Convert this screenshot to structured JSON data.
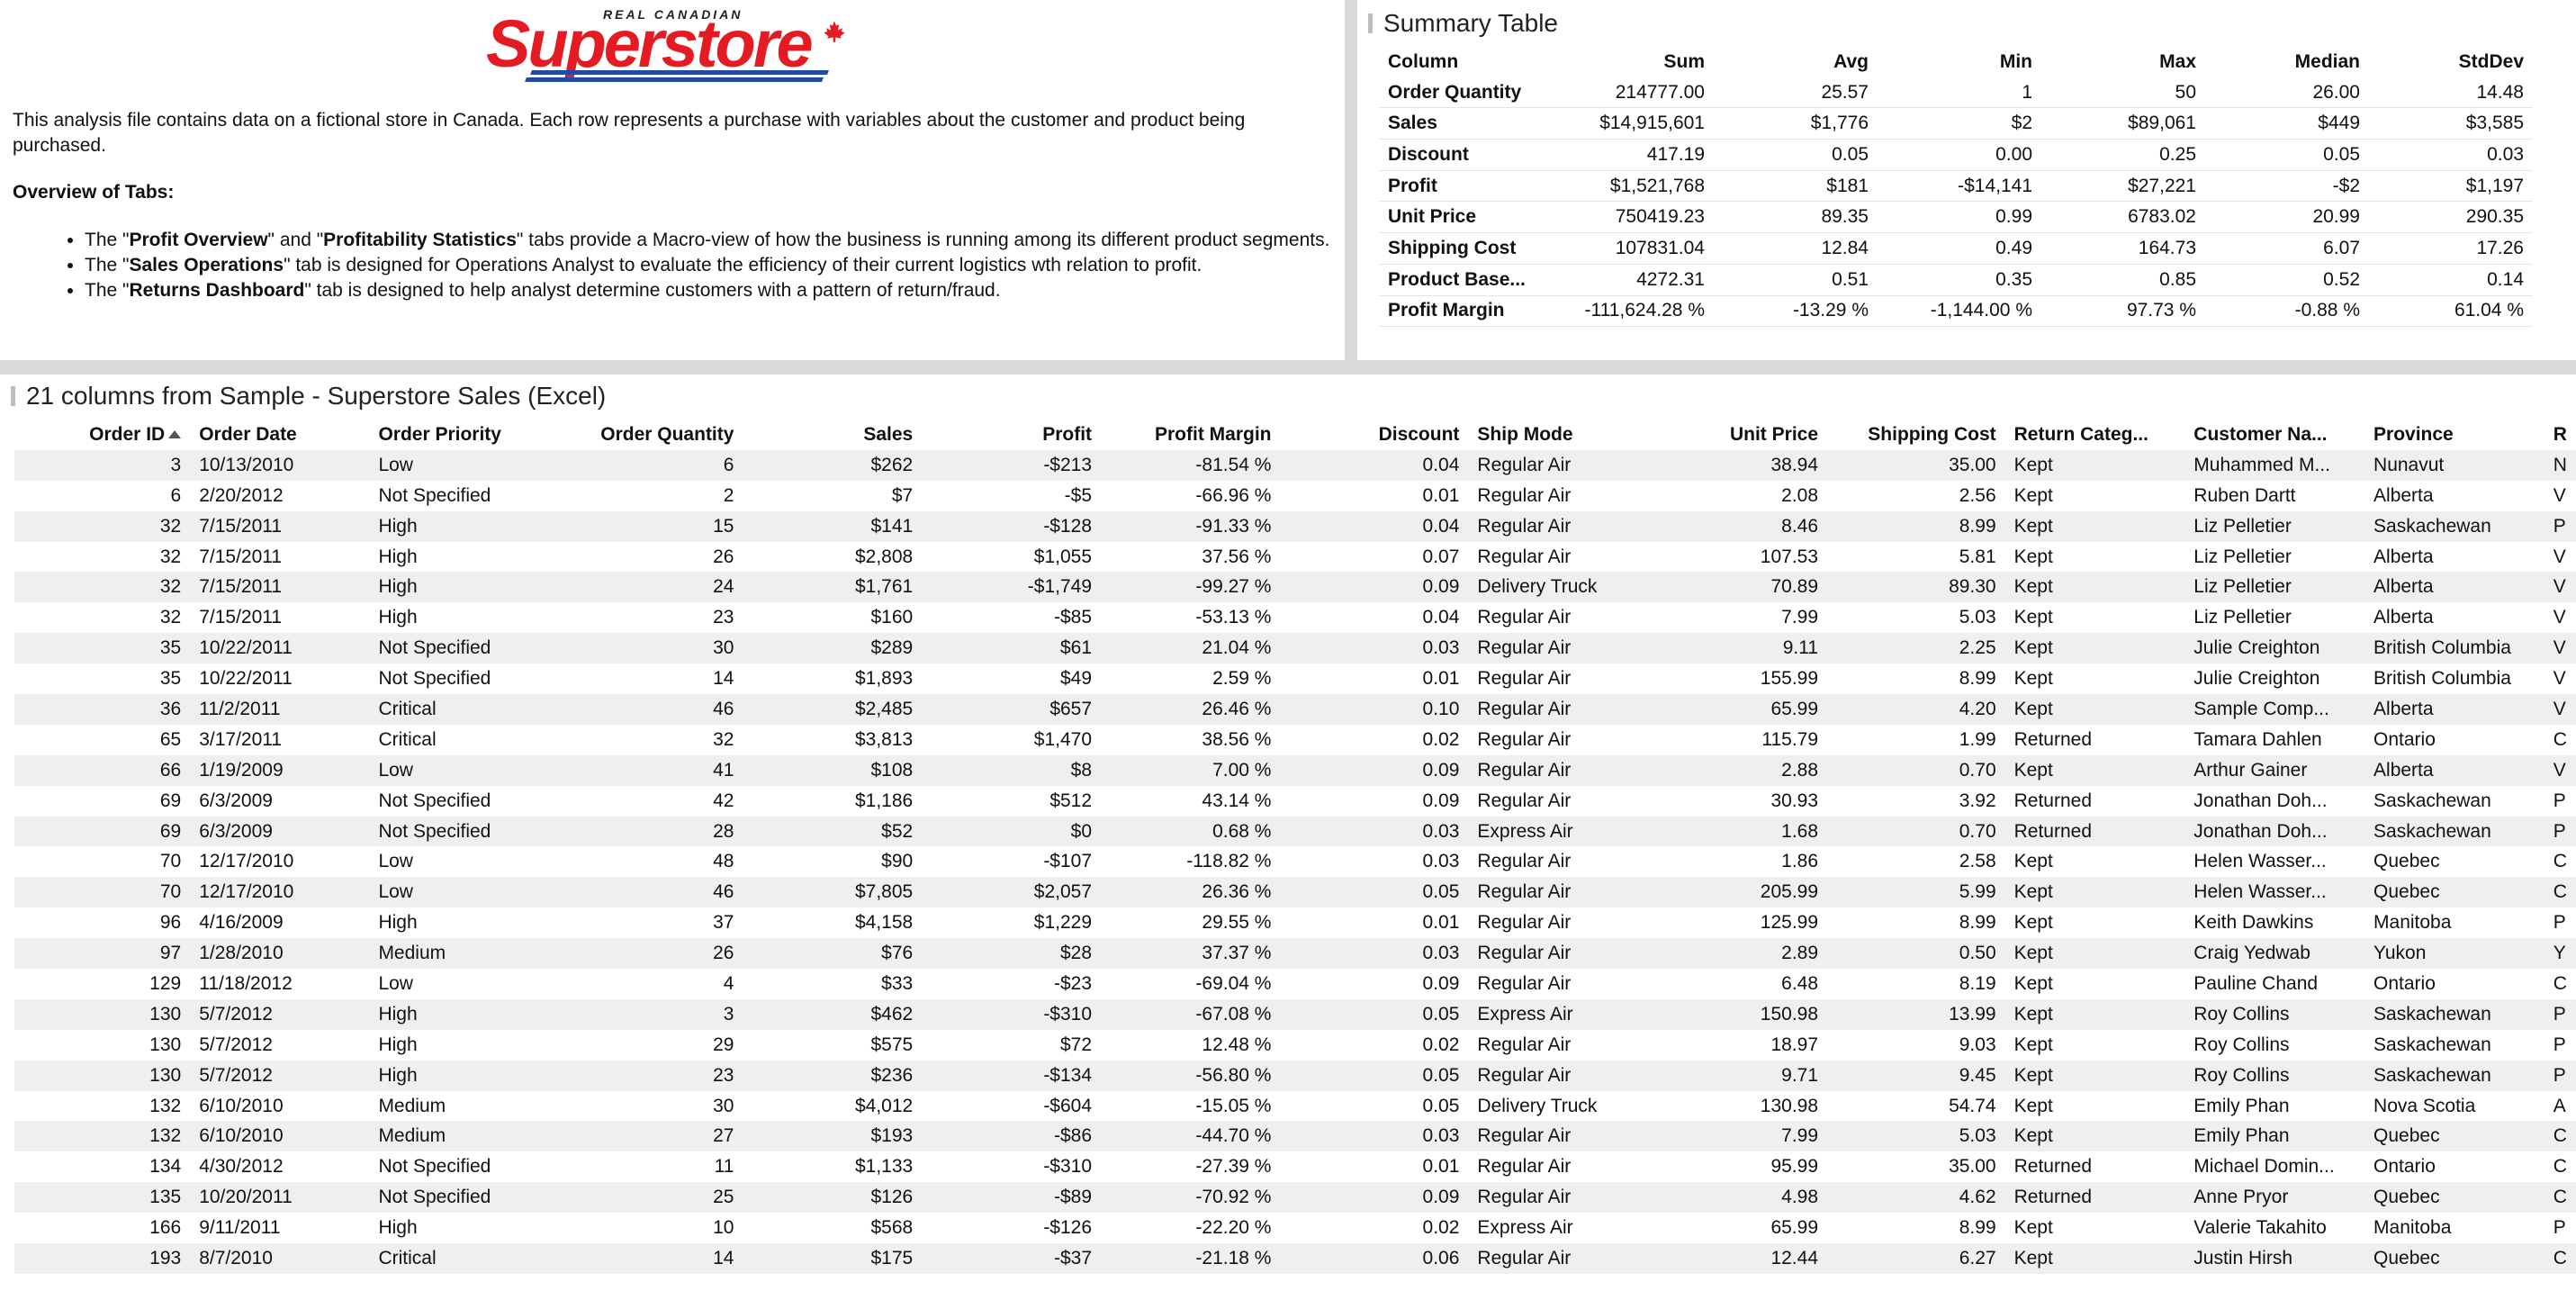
{
  "logo": {
    "tagline": "REAL CANADIAN",
    "wordmark": "Superstore",
    "icon": "maple-leaf-icon",
    "brand_red": "#e41b23",
    "brand_blue": "#1f4aa8"
  },
  "intro": {
    "description": "This analysis file contains data on a fictional store in Canada. Each row represents a purchase with variables about the customer and product being purchased.",
    "overview_title": "Overview of Tabs:",
    "bullets": [
      {
        "pre": "The \"",
        "b1": "Profit Overview",
        "mid": "\" and \"",
        "b2": "Profitability Statistics",
        "post": "\" tabs provide a Macro-view of how the business is running among its different product segments."
      },
      {
        "pre": "The \"",
        "b1": "Sales Operations",
        "post": "\" tab is designed for Operations Analyst to evaluate the efficiency of their current logistics wth relation to profit."
      },
      {
        "pre": "The \"",
        "b1": "Returns Dashboard",
        "post": "\" tab is designed to help analyst determine customers with a pattern of return/fraud."
      }
    ]
  },
  "summary": {
    "title": "Summary Table",
    "columns": [
      "Column",
      "Sum",
      "Avg",
      "Min",
      "Max",
      "Median",
      "StdDev"
    ],
    "rows": [
      [
        "Order Quantity",
        "214777.00",
        "25.57",
        "1",
        "50",
        "26.00",
        "14.48"
      ],
      [
        "Sales",
        "$14,915,601",
        "$1,776",
        "$2",
        "$89,061",
        "$449",
        "$3,585"
      ],
      [
        "Discount",
        "417.19",
        "0.05",
        "0.00",
        "0.25",
        "0.05",
        "0.03"
      ],
      [
        "Profit",
        "$1,521,768",
        "$181",
        "-$14,141",
        "$27,221",
        "-$2",
        "$1,197"
      ],
      [
        "Unit Price",
        "750419.23",
        "89.35",
        "0.99",
        "6783.02",
        "20.99",
        "290.35"
      ],
      [
        "Shipping Cost",
        "107831.04",
        "12.84",
        "0.49",
        "164.73",
        "6.07",
        "17.26"
      ],
      [
        "Product Base...",
        "4272.31",
        "0.51",
        "0.35",
        "0.85",
        "0.52",
        "0.14"
      ],
      [
        "Profit Margin",
        "-111,624.28 %",
        "-13.29 %",
        "-1,144.00 %",
        "97.73 %",
        "-0.88 %",
        "61.04 %"
      ]
    ]
  },
  "data_table": {
    "title": "21 columns from Sample - Superstore Sales (Excel)",
    "sort_icon": "sort-ascending-icon",
    "columns": [
      "Order ID",
      "Order Date",
      "Order Priority",
      "Order Quantity",
      "Sales",
      "Profit",
      "Profit Margin",
      "Discount",
      "Ship Mode",
      "Unit Price",
      "Shipping Cost",
      "Return Categ...",
      "Customer Na...",
      "Province",
      "R"
    ],
    "rows": [
      [
        "3",
        "10/13/2010",
        "Low",
        "6",
        "$262",
        "-$213",
        "-81.54 %",
        "0.04",
        "Regular Air",
        "38.94",
        "35.00",
        "Kept",
        "Muhammed M...",
        "Nunavut",
        "N"
      ],
      [
        "6",
        "2/20/2012",
        "Not Specified",
        "2",
        "$7",
        "-$5",
        "-66.96 %",
        "0.01",
        "Regular Air",
        "2.08",
        "2.56",
        "Kept",
        "Ruben Dartt",
        "Alberta",
        "V"
      ],
      [
        "32",
        "7/15/2011",
        "High",
        "15",
        "$141",
        "-$128",
        "-91.33 %",
        "0.04",
        "Regular Air",
        "8.46",
        "8.99",
        "Kept",
        "Liz Pelletier",
        "Saskachewan",
        "P"
      ],
      [
        "32",
        "7/15/2011",
        "High",
        "26",
        "$2,808",
        "$1,055",
        "37.56 %",
        "0.07",
        "Regular Air",
        "107.53",
        "5.81",
        "Kept",
        "Liz Pelletier",
        "Alberta",
        "V"
      ],
      [
        "32",
        "7/15/2011",
        "High",
        "24",
        "$1,761",
        "-$1,749",
        "-99.27 %",
        "0.09",
        "Delivery Truck",
        "70.89",
        "89.30",
        "Kept",
        "Liz Pelletier",
        "Alberta",
        "V"
      ],
      [
        "32",
        "7/15/2011",
        "High",
        "23",
        "$160",
        "-$85",
        "-53.13 %",
        "0.04",
        "Regular Air",
        "7.99",
        "5.03",
        "Kept",
        "Liz Pelletier",
        "Alberta",
        "V"
      ],
      [
        "35",
        "10/22/2011",
        "Not Specified",
        "30",
        "$289",
        "$61",
        "21.04 %",
        "0.03",
        "Regular Air",
        "9.11",
        "2.25",
        "Kept",
        "Julie Creighton",
        "British Columbia",
        "V"
      ],
      [
        "35",
        "10/22/2011",
        "Not Specified",
        "14",
        "$1,893",
        "$49",
        "2.59 %",
        "0.01",
        "Regular Air",
        "155.99",
        "8.99",
        "Kept",
        "Julie Creighton",
        "British Columbia",
        "V"
      ],
      [
        "36",
        "11/2/2011",
        "Critical",
        "46",
        "$2,485",
        "$657",
        "26.46 %",
        "0.10",
        "Regular Air",
        "65.99",
        "4.20",
        "Kept",
        "Sample Comp...",
        "Alberta",
        "V"
      ],
      [
        "65",
        "3/17/2011",
        "Critical",
        "32",
        "$3,813",
        "$1,470",
        "38.56 %",
        "0.02",
        "Regular Air",
        "115.79",
        "1.99",
        "Returned",
        "Tamara Dahlen",
        "Ontario",
        "C"
      ],
      [
        "66",
        "1/19/2009",
        "Low",
        "41",
        "$108",
        "$8",
        "7.00 %",
        "0.09",
        "Regular Air",
        "2.88",
        "0.70",
        "Kept",
        "Arthur Gainer",
        "Alberta",
        "V"
      ],
      [
        "69",
        "6/3/2009",
        "Not Specified",
        "42",
        "$1,186",
        "$512",
        "43.14 %",
        "0.09",
        "Regular Air",
        "30.93",
        "3.92",
        "Returned",
        "Jonathan Doh...",
        "Saskachewan",
        "P"
      ],
      [
        "69",
        "6/3/2009",
        "Not Specified",
        "28",
        "$52",
        "$0",
        "0.68 %",
        "0.03",
        "Express Air",
        "1.68",
        "0.70",
        "Returned",
        "Jonathan Doh...",
        "Saskachewan",
        "P"
      ],
      [
        "70",
        "12/17/2010",
        "Low",
        "48",
        "$90",
        "-$107",
        "-118.82 %",
        "0.03",
        "Regular Air",
        "1.86",
        "2.58",
        "Kept",
        "Helen Wasser...",
        "Quebec",
        "C"
      ],
      [
        "70",
        "12/17/2010",
        "Low",
        "46",
        "$7,805",
        "$2,057",
        "26.36 %",
        "0.05",
        "Regular Air",
        "205.99",
        "5.99",
        "Kept",
        "Helen Wasser...",
        "Quebec",
        "C"
      ],
      [
        "96",
        "4/16/2009",
        "High",
        "37",
        "$4,158",
        "$1,229",
        "29.55 %",
        "0.01",
        "Regular Air",
        "125.99",
        "8.99",
        "Kept",
        "Keith Dawkins",
        "Manitoba",
        "P"
      ],
      [
        "97",
        "1/28/2010",
        "Medium",
        "26",
        "$76",
        "$28",
        "37.37 %",
        "0.03",
        "Regular Air",
        "2.89",
        "0.50",
        "Kept",
        "Craig Yedwab",
        "Yukon",
        "Y"
      ],
      [
        "129",
        "11/18/2012",
        "Low",
        "4",
        "$33",
        "-$23",
        "-69.04 %",
        "0.09",
        "Regular Air",
        "6.48",
        "8.19",
        "Kept",
        "Pauline Chand",
        "Ontario",
        "C"
      ],
      [
        "130",
        "5/7/2012",
        "High",
        "3",
        "$462",
        "-$310",
        "-67.08 %",
        "0.05",
        "Express Air",
        "150.98",
        "13.99",
        "Kept",
        "Roy Collins",
        "Saskachewan",
        "P"
      ],
      [
        "130",
        "5/7/2012",
        "High",
        "29",
        "$575",
        "$72",
        "12.48 %",
        "0.02",
        "Regular Air",
        "18.97",
        "9.03",
        "Kept",
        "Roy Collins",
        "Saskachewan",
        "P"
      ],
      [
        "130",
        "5/7/2012",
        "High",
        "23",
        "$236",
        "-$134",
        "-56.80 %",
        "0.05",
        "Regular Air",
        "9.71",
        "9.45",
        "Kept",
        "Roy Collins",
        "Saskachewan",
        "P"
      ],
      [
        "132",
        "6/10/2010",
        "Medium",
        "30",
        "$4,012",
        "-$604",
        "-15.05 %",
        "0.05",
        "Delivery Truck",
        "130.98",
        "54.74",
        "Kept",
        "Emily Phan",
        "Nova Scotia",
        "A"
      ],
      [
        "132",
        "6/10/2010",
        "Medium",
        "27",
        "$193",
        "-$86",
        "-44.70 %",
        "0.03",
        "Regular Air",
        "7.99",
        "5.03",
        "Kept",
        "Emily Phan",
        "Quebec",
        "C"
      ],
      [
        "134",
        "4/30/2012",
        "Not Specified",
        "11",
        "$1,133",
        "-$310",
        "-27.39 %",
        "0.01",
        "Regular Air",
        "95.99",
        "35.00",
        "Returned",
        "Michael Domin...",
        "Ontario",
        "C"
      ],
      [
        "135",
        "10/20/2011",
        "Not Specified",
        "25",
        "$126",
        "-$89",
        "-70.92 %",
        "0.09",
        "Regular Air",
        "4.98",
        "4.62",
        "Returned",
        "Anne Pryor",
        "Quebec",
        "C"
      ],
      [
        "166",
        "9/11/2011",
        "High",
        "10",
        "$568",
        "-$126",
        "-22.20 %",
        "0.02",
        "Express Air",
        "65.99",
        "8.99",
        "Kept",
        "Valerie Takahito",
        "Manitoba",
        "P"
      ],
      [
        "193",
        "8/7/2010",
        "Critical",
        "14",
        "$175",
        "-$37",
        "-21.18 %",
        "0.06",
        "Regular Air",
        "12.44",
        "6.27",
        "Kept",
        "Justin Hirsh",
        "Quebec",
        "C"
      ]
    ]
  }
}
